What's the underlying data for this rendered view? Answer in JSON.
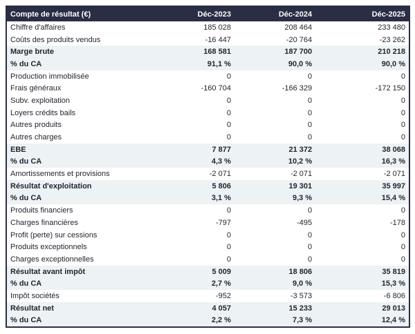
{
  "colors": {
    "header_bg": "#2a2d44",
    "header_text": "#ffffff",
    "emphasis_row_bg": "#edf2f4",
    "body_text": "#23252f",
    "table_border": "#2a2d44"
  },
  "table": {
    "header": {
      "label": "Compte de résultat (€)",
      "columns": [
        "Déc-2023",
        "Déc-2024",
        "Déc-2025"
      ]
    },
    "rows": [
      {
        "label": "Chiffre d'affaires",
        "values": [
          "185 028",
          "208 464",
          "233 480"
        ],
        "emphasis": false
      },
      {
        "label": "Coûts des produits vendus",
        "values": [
          "-16 447",
          "-20 764",
          "-23 262"
        ],
        "emphasis": false
      },
      {
        "label": "Marge brute",
        "values": [
          "168 581",
          "187 700",
          "210 218"
        ],
        "emphasis": true
      },
      {
        "label": "% du CA",
        "values": [
          "91,1 %",
          "90,0 %",
          "90,0 %"
        ],
        "emphasis": true
      },
      {
        "label": "Production immobilisée",
        "values": [
          "0",
          "0",
          "0"
        ],
        "emphasis": false
      },
      {
        "label": "Frais généraux",
        "values": [
          "-160 704",
          "-166 329",
          "-172 150"
        ],
        "emphasis": false
      },
      {
        "label": "Subv. exploitation",
        "values": [
          "0",
          "0",
          "0"
        ],
        "emphasis": false
      },
      {
        "label": "Loyers crédits bails",
        "values": [
          "0",
          "0",
          "0"
        ],
        "emphasis": false
      },
      {
        "label": "Autres produits",
        "values": [
          "0",
          "0",
          "0"
        ],
        "emphasis": false
      },
      {
        "label": "Autres charges",
        "values": [
          "0",
          "0",
          "0"
        ],
        "emphasis": false
      },
      {
        "label": "EBE",
        "values": [
          "7 877",
          "21 372",
          "38 068"
        ],
        "emphasis": true
      },
      {
        "label": "% du CA",
        "values": [
          "4,3 %",
          "10,2 %",
          "16,3 %"
        ],
        "emphasis": true
      },
      {
        "label": "Amortissements et provisions",
        "values": [
          "-2 071",
          "-2 071",
          "-2 071"
        ],
        "emphasis": false
      },
      {
        "label": "Résultat d'exploitation",
        "values": [
          "5 806",
          "19 301",
          "35 997"
        ],
        "emphasis": true
      },
      {
        "label": "% du CA",
        "values": [
          "3,1 %",
          "9,3 %",
          "15,4 %"
        ],
        "emphasis": true
      },
      {
        "label": "Produits financiers",
        "values": [
          "0",
          "0",
          "0"
        ],
        "emphasis": false
      },
      {
        "label": "Charges financières",
        "values": [
          "-797",
          "-495",
          "-178"
        ],
        "emphasis": false
      },
      {
        "label": "Profit (perte) sur cessions",
        "values": [
          "0",
          "0",
          "0"
        ],
        "emphasis": false
      },
      {
        "label": "Produits exceptionnels",
        "values": [
          "0",
          "0",
          "0"
        ],
        "emphasis": false
      },
      {
        "label": "Charges exceptionnelles",
        "values": [
          "0",
          "0",
          "0"
        ],
        "emphasis": false
      },
      {
        "label": "Résultat avant impôt",
        "values": [
          "5 009",
          "18 806",
          "35 819"
        ],
        "emphasis": true
      },
      {
        "label": "% du CA",
        "values": [
          "2,7 %",
          "9,0 %",
          "15,3 %"
        ],
        "emphasis": true
      },
      {
        "label": "Impôt sociétés",
        "values": [
          "-952",
          "-3 573",
          "-6 806"
        ],
        "emphasis": false
      },
      {
        "label": "Résultat net",
        "values": [
          "4 057",
          "15 233",
          "29 013"
        ],
        "emphasis": true
      },
      {
        "label": "% du CA",
        "values": [
          "2,2 %",
          "7,3 %",
          "12,4 %"
        ],
        "emphasis": true
      }
    ]
  }
}
